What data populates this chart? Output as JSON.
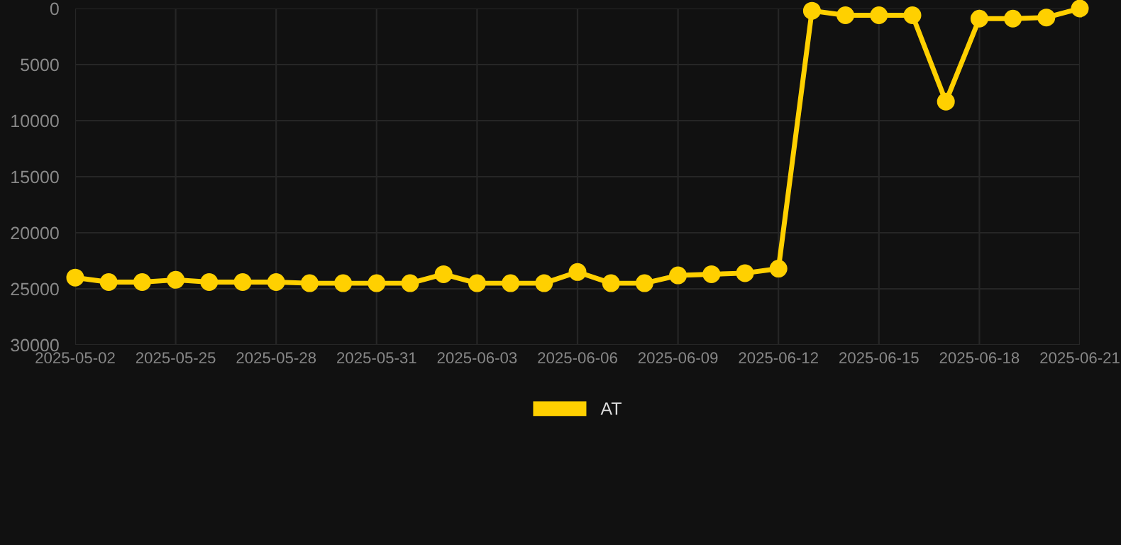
{
  "chart_data": {
    "type": "line",
    "categories": [
      "2025-05-02",
      null,
      null,
      "2025-05-25",
      null,
      null,
      "2025-05-28",
      null,
      null,
      "2025-05-31",
      null,
      null,
      "2025-06-03",
      null,
      null,
      "2025-06-06",
      null,
      null,
      "2025-06-09",
      null,
      null,
      "2025-06-12",
      null,
      null,
      "2025-06-15",
      null,
      null,
      "2025-06-18",
      null,
      null,
      "2025-06-21"
    ],
    "series": [
      {
        "name": "AT",
        "color": "#ffd000",
        "values": [
          24000,
          24400,
          24400,
          24200,
          24400,
          24400,
          24400,
          24500,
          24500,
          24500,
          24500,
          23700,
          24500,
          24500,
          24500,
          23500,
          24500,
          24500,
          23800,
          23700,
          23600,
          23200,
          200,
          600,
          600,
          600,
          8300,
          900,
          900,
          800,
          0
        ]
      }
    ],
    "ylim": [
      30000,
      0
    ],
    "yticks": [
      0,
      5000,
      10000,
      15000,
      20000,
      25000,
      30000
    ],
    "grid": true,
    "legend": "bottom",
    "marker": "circle",
    "line_style": "solid"
  }
}
